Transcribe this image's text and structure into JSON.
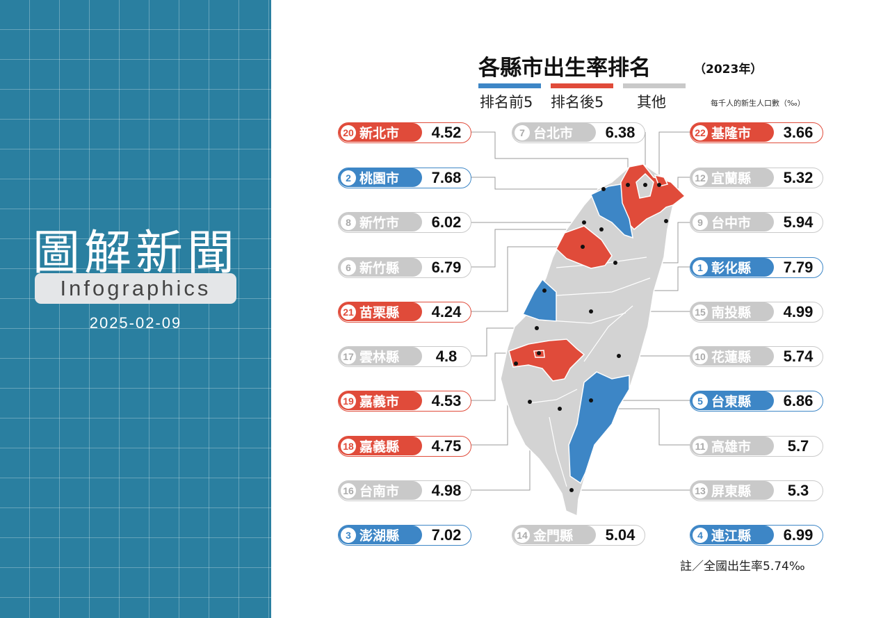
{
  "brand": {
    "title": "圖解新聞",
    "subtitle": "Infographics",
    "date": "2025-02-09"
  },
  "chart": {
    "title": "各縣市出生率排名",
    "year": "（2023年）",
    "unit_note": "每千人的新生人口數（‰）",
    "footnote": "註／全國出生率5.74‰",
    "legend": [
      {
        "label": "排名前5",
        "color": "#3d86c6"
      },
      {
        "label": "排名後5",
        "color": "#e04b3a"
      },
      {
        "label": "其他",
        "color": "#c9c9c9"
      }
    ]
  },
  "chart_data": {
    "type": "table",
    "title": "各縣市出生率排名",
    "subtitle": "（2023年）",
    "unit": "每千人的新生人口數（‰）",
    "national_rate": 5.74,
    "regions": [
      {
        "rank": "20",
        "name": "新北市",
        "value": "4.52",
        "group": "bottom"
      },
      {
        "rank": "2",
        "name": "桃園市",
        "value": "7.68",
        "group": "top"
      },
      {
        "rank": "8",
        "name": "新竹市",
        "value": "6.02",
        "group": "other"
      },
      {
        "rank": "6",
        "name": "新竹縣",
        "value": "6.79",
        "group": "other"
      },
      {
        "rank": "21",
        "name": "苗栗縣",
        "value": "4.24",
        "group": "bottom"
      },
      {
        "rank": "17",
        "name": "雲林縣",
        "value": "4.8",
        "group": "other"
      },
      {
        "rank": "19",
        "name": "嘉義市",
        "value": "4.53",
        "group": "bottom"
      },
      {
        "rank": "18",
        "name": "嘉義縣",
        "value": "4.75",
        "group": "bottom"
      },
      {
        "rank": "16",
        "name": "台南市",
        "value": "4.98",
        "group": "other"
      },
      {
        "rank": "3",
        "name": "澎湖縣",
        "value": "7.02",
        "group": "top"
      },
      {
        "rank": "7",
        "name": "台北市",
        "value": "6.38",
        "group": "other"
      },
      {
        "rank": "14",
        "name": "金門縣",
        "value": "5.04",
        "group": "other"
      },
      {
        "rank": "22",
        "name": "基隆市",
        "value": "3.66",
        "group": "bottom"
      },
      {
        "rank": "12",
        "name": "宜蘭縣",
        "value": "5.32",
        "group": "other"
      },
      {
        "rank": "9",
        "name": "台中市",
        "value": "5.94",
        "group": "other"
      },
      {
        "rank": "1",
        "name": "彰化縣",
        "value": "7.79",
        "group": "top"
      },
      {
        "rank": "15",
        "name": "南投縣",
        "value": "4.99",
        "group": "other"
      },
      {
        "rank": "10",
        "name": "花蓮縣",
        "value": "5.74",
        "group": "other"
      },
      {
        "rank": "5",
        "name": "台東縣",
        "value": "6.86",
        "group": "top"
      },
      {
        "rank": "11",
        "name": "高雄市",
        "value": "5.7",
        "group": "other"
      },
      {
        "rank": "13",
        "name": "屏東縣",
        "value": "5.3",
        "group": "other"
      },
      {
        "rank": "4",
        "name": "連江縣",
        "value": "6.99",
        "group": "top"
      }
    ]
  }
}
